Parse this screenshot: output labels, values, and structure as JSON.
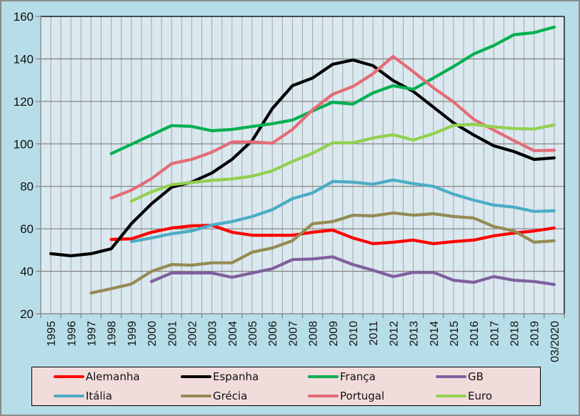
{
  "chart_data": {
    "type": "line",
    "title": "",
    "xlabel": "",
    "ylabel": "",
    "ylim": [
      20,
      160
    ],
    "yticks": [
      20,
      40,
      60,
      80,
      100,
      120,
      140,
      160
    ],
    "grid": true,
    "legend_position": "bottom",
    "categories": [
      "1995",
      "1996",
      "1997",
      "1998",
      "1999",
      "2000",
      "2001",
      "2002",
      "2003",
      "2004",
      "2005",
      "2006",
      "2007",
      "2008",
      "2009",
      "2010",
      "2011",
      "2012",
      "2013",
      "2014",
      "2015",
      "2016",
      "2017",
      "2018",
      "2019",
      "03/2020"
    ],
    "series": [
      {
        "name": "Alemanha",
        "color": "#ff0000",
        "values": [
          null,
          null,
          null,
          55,
          55.3,
          58.4,
          60.4,
          61.4,
          61.7,
          58.4,
          57,
          57,
          57,
          58.4,
          59.4,
          55.7,
          53,
          53.7,
          54.7,
          53,
          54,
          54.7,
          56.7,
          58,
          59,
          60.4
        ]
      },
      {
        "name": "Espanha",
        "color": "#000000",
        "values": [
          48.3,
          47.3,
          48.3,
          50.6,
          62.4,
          71.8,
          79.6,
          82,
          86.3,
          92.7,
          101.5,
          116.6,
          127.4,
          131,
          137.5,
          139.5,
          136.8,
          129.8,
          124.7,
          117.3,
          109.9,
          104.2,
          99.1,
          96.4,
          92.7,
          93.4
        ]
      },
      {
        "name": "França",
        "color": "#00b050",
        "values": [
          null,
          null,
          null,
          95.4,
          99.8,
          104.2,
          108.6,
          108.2,
          106.2,
          106.8,
          108.2,
          109.5,
          111.2,
          115.5,
          119.6,
          118.7,
          124,
          127.4,
          125.7,
          131,
          136.4,
          142.3,
          146.3,
          151.4,
          152.4,
          155
        ]
      },
      {
        "name": "GB",
        "color": "#7f5f9f",
        "values": [
          null,
          null,
          null,
          null,
          null,
          35.2,
          39.2,
          39.2,
          39.2,
          37.2,
          39.2,
          41.2,
          45.5,
          45.8,
          46.8,
          43.2,
          40.5,
          37.5,
          39.5,
          39.5,
          35.8,
          34.8,
          37.5,
          35.8,
          35.2,
          33.8
        ]
      },
      {
        "name": "Itália",
        "color": "#4bacc6",
        "values": [
          null,
          null,
          null,
          null,
          54,
          55.7,
          57.7,
          59,
          61.8,
          63.4,
          65.8,
          69,
          74.2,
          76.9,
          82.3,
          82,
          81,
          83,
          81.3,
          80,
          76.3,
          73.5,
          71.2,
          70.2,
          68.2,
          68.5
        ]
      },
      {
        "name": "Grécia",
        "color": "#948a54",
        "values": [
          null,
          null,
          29.8,
          31.8,
          34,
          40,
          43.2,
          42.9,
          44,
          44,
          49,
          51,
          54.4,
          62.4,
          63.4,
          66.4,
          66.1,
          67.5,
          66.4,
          67.1,
          65.8,
          65.1,
          61.1,
          59,
          53.7,
          54.4
        ]
      },
      {
        "name": "Portugal",
        "color": "#e46c76",
        "values": [
          null,
          null,
          null,
          74.5,
          78.2,
          83.6,
          90.7,
          92.7,
          96.1,
          100.9,
          100.9,
          100.3,
          106.8,
          116,
          123.4,
          127,
          133,
          141.2,
          134,
          126.4,
          119.7,
          111.6,
          106.5,
          101.5,
          96.8,
          97
        ]
      },
      {
        "name": "Euro",
        "color": "#92d050",
        "values": [
          null,
          null,
          null,
          null,
          73,
          77.4,
          80.8,
          81.8,
          82.8,
          83.5,
          84.8,
          87.3,
          91.7,
          95.6,
          100.5,
          100.5,
          102.8,
          104.3,
          101.8,
          104.8,
          108.7,
          109.2,
          108,
          107.2,
          107,
          108.9
        ]
      }
    ]
  },
  "legend": {
    "items": [
      {
        "label": "Alemanha",
        "color": "#ff0000"
      },
      {
        "label": "Espanha",
        "color": "#000000"
      },
      {
        "label": "França",
        "color": "#00b050"
      },
      {
        "label": "GB",
        "color": "#7f5f9f"
      },
      {
        "label": "Itália",
        "color": "#4bacc6"
      },
      {
        "label": "Grécia",
        "color": "#948a54"
      },
      {
        "label": "Portugal",
        "color": "#e46c76"
      },
      {
        "label": "Euro",
        "color": "#92d050"
      }
    ]
  }
}
